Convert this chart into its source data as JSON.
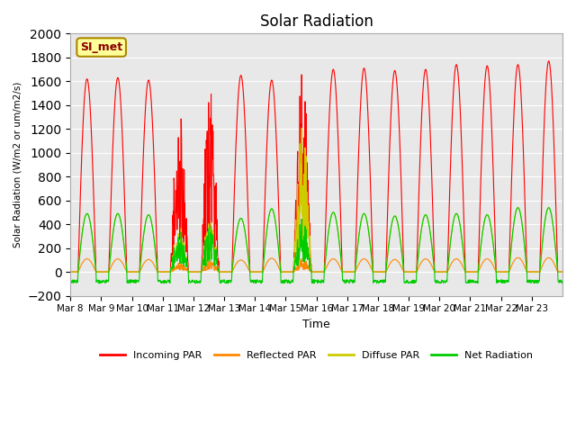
{
  "title": "Solar Radiation",
  "ylabel": "Solar Radiation (W/m2 or um/m2/s)",
  "xlabel": "Time",
  "ylim": [
    -200,
    2000
  ],
  "yticks": [
    -200,
    0,
    200,
    400,
    600,
    800,
    1000,
    1200,
    1400,
    1600,
    1800,
    2000
  ],
  "bg_color": "#e8e8e8",
  "grid_color": "white",
  "colors": {
    "incoming": "#ff0000",
    "reflected": "#ff8800",
    "diffuse": "#cccc00",
    "net": "#00cc00"
  },
  "legend_labels": [
    "Incoming PAR",
    "Reflected PAR",
    "Diffuse PAR",
    "Net Radiation"
  ],
  "station_label": "SI_met",
  "x_tick_labels": [
    "Mar 8",
    "Mar 9",
    "Mar 10",
    "Mar 11",
    "Mar 12",
    "Mar 13",
    "Mar 14",
    "Mar 15",
    "Mar 16",
    "Mar 17",
    "Mar 18",
    "Mar 19",
    "Mar 20",
    "Mar 21",
    "Mar 22",
    "Mar 23"
  ],
  "num_days": 16,
  "dt_hours": 0.25,
  "incoming_peaks": [
    1620,
    1630,
    1610,
    1470,
    1760,
    1650,
    1610,
    1810,
    1700,
    1710,
    1690,
    1700,
    1740,
    1730,
    1740,
    1770
  ],
  "net_peaks": [
    490,
    490,
    480,
    420,
    500,
    450,
    530,
    540,
    500,
    490,
    470,
    480,
    490,
    480,
    540,
    540
  ],
  "diffuse_peaks": [
    490,
    490,
    480,
    420,
    500,
    450,
    530,
    1320,
    500,
    490,
    470,
    480,
    490,
    480,
    540,
    540
  ],
  "reflected_peaks": [
    110,
    110,
    105,
    95,
    110,
    100,
    115,
    120,
    110,
    110,
    105,
    110,
    110,
    110,
    120,
    120
  ],
  "cloud_days": [
    3,
    4,
    7
  ],
  "night_dip": -80,
  "rise_hour": 6,
  "set_hour": 20
}
